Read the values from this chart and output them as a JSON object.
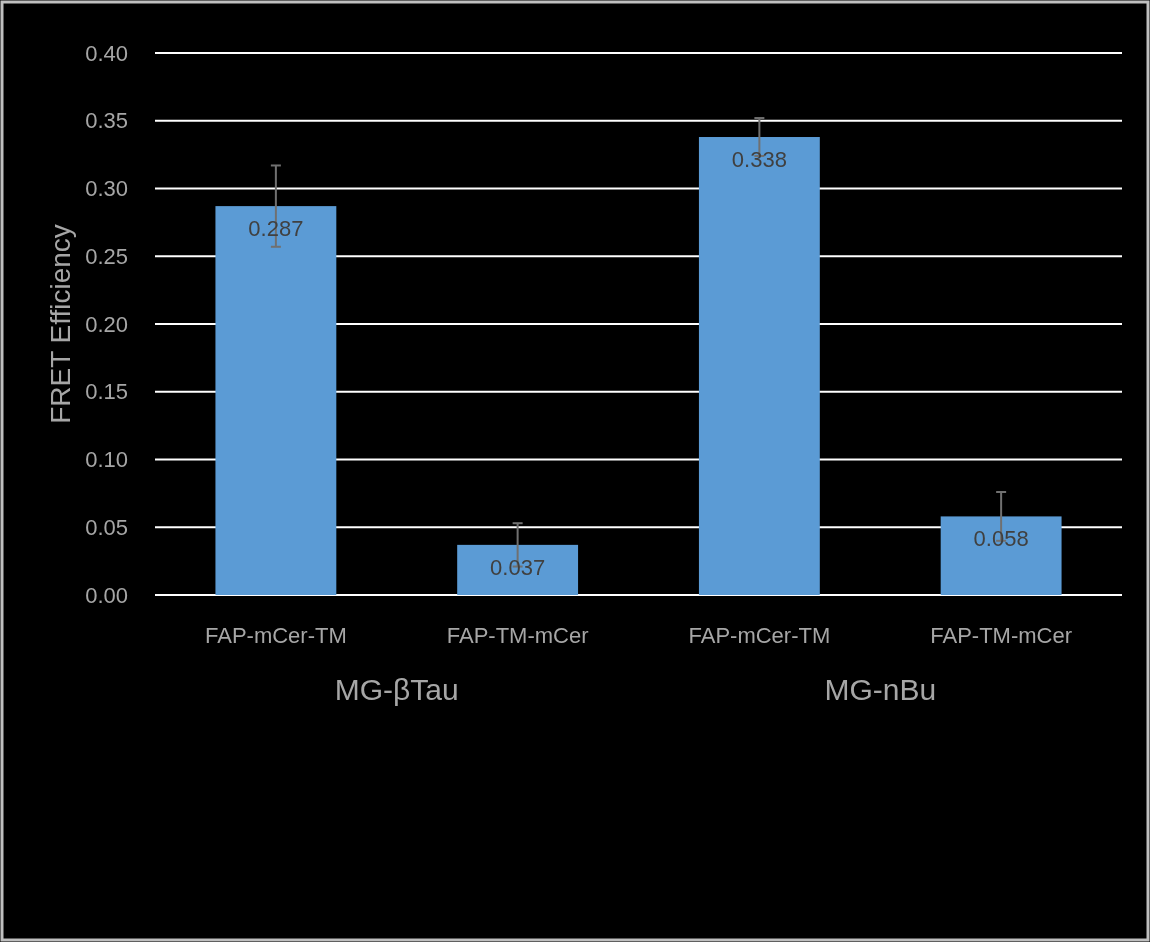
{
  "chart_data": {
    "type": "bar",
    "ylabel": "FRET Efficiency",
    "categories": [
      "FAP-mCer-TM",
      "FAP-TM-mCer",
      "FAP-mCer-TM",
      "FAP-TM-mCer"
    ],
    "values": [
      0.287,
      0.037,
      0.338,
      0.058
    ],
    "errors": [
      0.03,
      0.016,
      0.014,
      0.018
    ],
    "color": "#5b9bd5",
    "ylim": [
      0,
      0.4
    ],
    "yticks": [
      {
        "value": 0,
        "label": "0.00"
      },
      {
        "value": 0.05,
        "label": "0.05"
      },
      {
        "value": 0.1,
        "label": "0.10"
      },
      {
        "value": 0.15,
        "label": "0.15"
      },
      {
        "value": 0.2,
        "label": "0.20"
      },
      {
        "value": 0.25,
        "label": "0.25"
      },
      {
        "value": 0.3,
        "label": "0.30"
      },
      {
        "value": 0.35,
        "label": "0.35"
      },
      {
        "value": 0.4,
        "label": "0.40"
      }
    ],
    "grid": "y",
    "data_labels": true,
    "annotations": [
      "MG-βTau",
      "MG-nBu"
    ]
  }
}
